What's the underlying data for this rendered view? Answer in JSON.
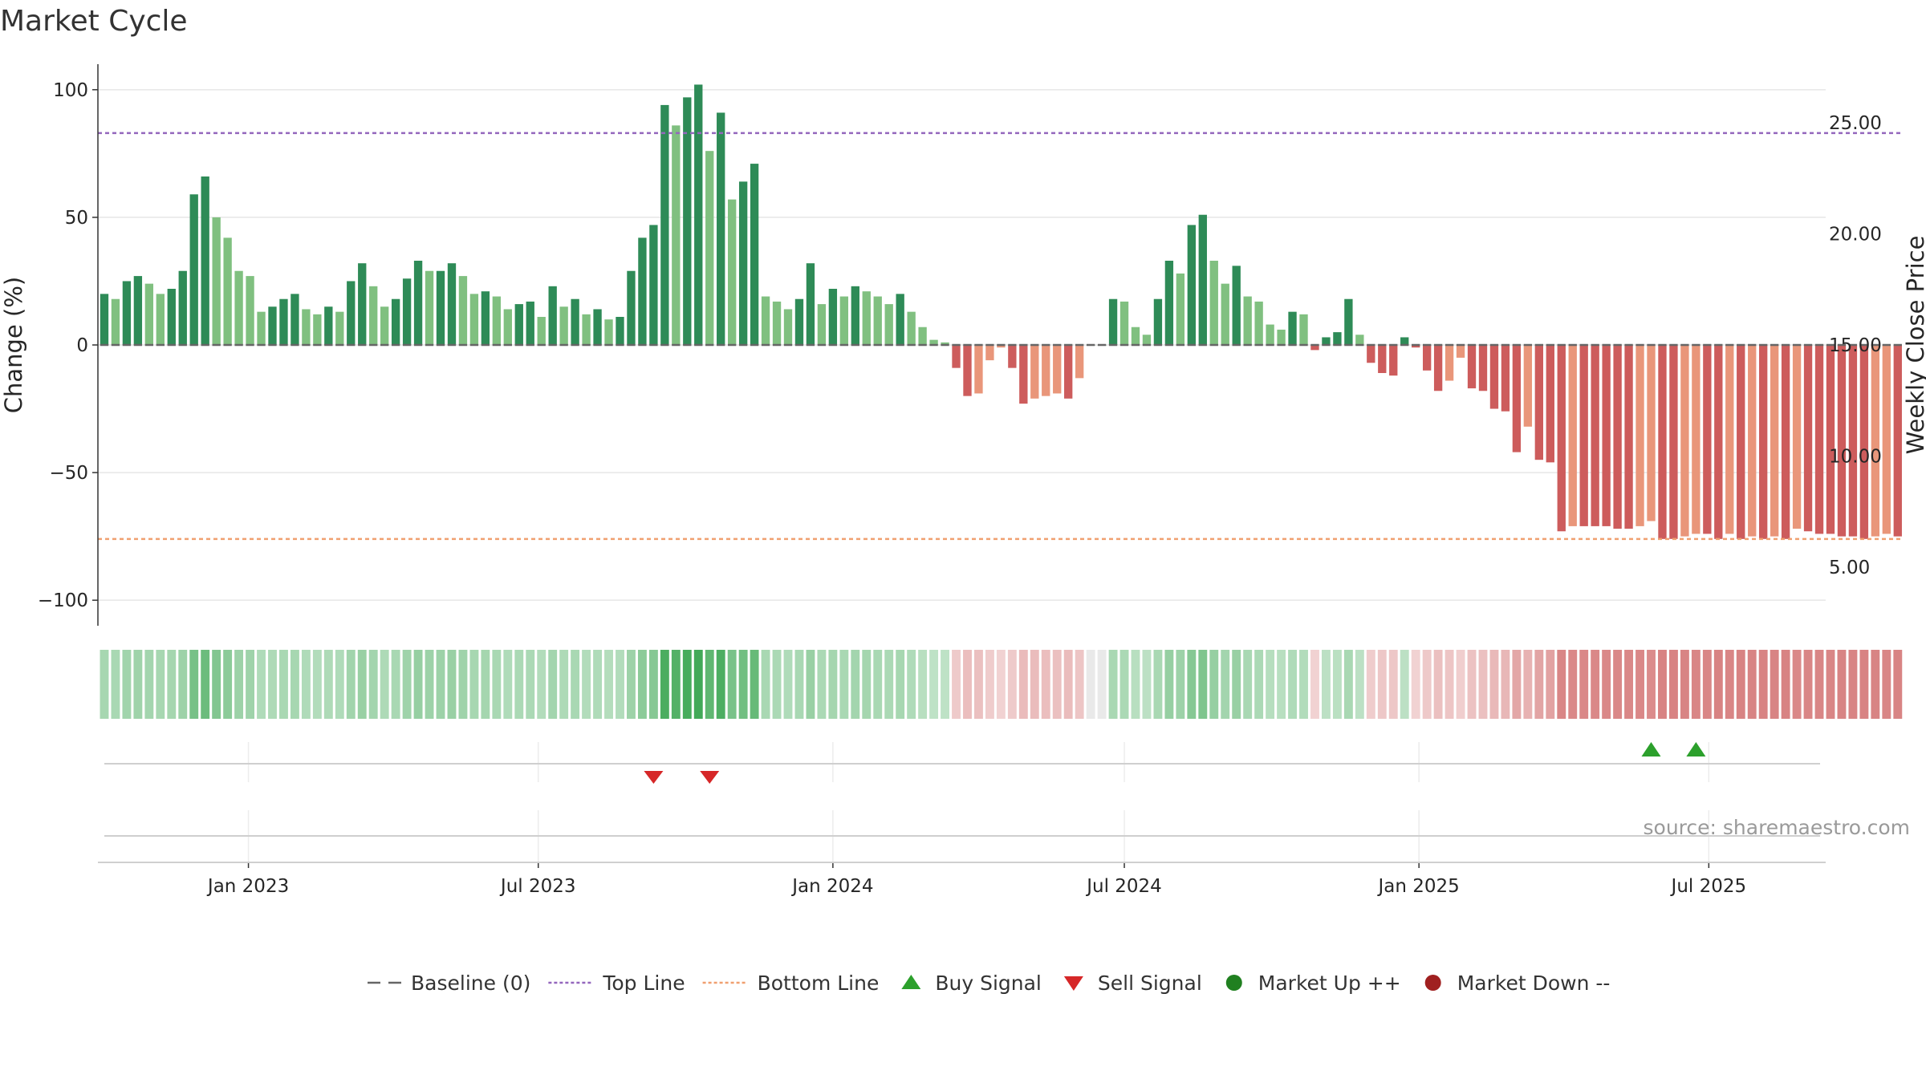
{
  "chart_data": {
    "type": "bar",
    "title": "Market Cycle",
    "ylabel_left": "Change (%)",
    "ylabel_right": "Weekly Close Price",
    "ylim_left": [
      -110,
      110
    ],
    "ylim_right": [
      2.36,
      27.64
    ],
    "yticks_left": [
      100,
      50,
      0,
      -50,
      -100
    ],
    "yticks_left_labels": [
      "100",
      "50",
      "0",
      "−50",
      "−100"
    ],
    "yticks_right": [
      25,
      20,
      15,
      10,
      5
    ],
    "yticks_right_labels": [
      "25.00",
      "20.00",
      "15.00",
      "10.00",
      "5.00"
    ],
    "x_start": "2022-10-03",
    "x_range": [
      "2022-09-29",
      "2025-09-12"
    ],
    "x_ticks": [
      {
        "date": "2023-01-01",
        "label": "Jan 2023"
      },
      {
        "date": "2023-07-01",
        "label": "Jul 2023"
      },
      {
        "date": "2024-01-01",
        "label": "Jan 2024"
      },
      {
        "date": "2024-07-01",
        "label": "Jul 2024"
      },
      {
        "date": "2025-01-01",
        "label": "Jan 2025"
      },
      {
        "date": "2025-07-01",
        "label": "Jul 2025"
      }
    ],
    "top_line": 83,
    "bottom_line": -76,
    "baseline": 0,
    "values": [
      20,
      18,
      25,
      27,
      24,
      20,
      22,
      29,
      59,
      66,
      50,
      42,
      29,
      27,
      13,
      15,
      18,
      20,
      14,
      12,
      15,
      13,
      25,
      32,
      23,
      15,
      18,
      26,
      33,
      29,
      29,
      32,
      27,
      20,
      21,
      19,
      14,
      16,
      17,
      11,
      23,
      15,
      18,
      12,
      14,
      10,
      11,
      29,
      42,
      47,
      94,
      86,
      97,
      102,
      76,
      91,
      57,
      64,
      71,
      19,
      17,
      14,
      18,
      32,
      16,
      22,
      19,
      23,
      21,
      19,
      16,
      20,
      13,
      7,
      2,
      1,
      -9,
      -20,
      -19,
      -6,
      -1,
      -9,
      -23,
      -21,
      -20,
      -19,
      -21,
      -13,
      0,
      0,
      18,
      17,
      7,
      4,
      18,
      33,
      28,
      47,
      51,
      33,
      24,
      31,
      19,
      17,
      8,
      6,
      13,
      12,
      -2,
      3,
      5,
      18,
      4,
      -7,
      -11,
      -12,
      3,
      -1,
      -10,
      -18,
      -14,
      -5,
      -17,
      -18,
      -25,
      -26,
      -42,
      -32,
      -45,
      -46,
      -73,
      -71,
      -71,
      -71,
      -71,
      -72,
      -72,
      -71,
      -69,
      -76,
      -76,
      -75,
      -74,
      -74,
      -76,
      -74,
      -76,
      -75,
      -76,
      -75,
      -76,
      -72,
      -73,
      -74,
      -74,
      -75,
      -75,
      -76,
      -75,
      -74,
      -75
    ],
    "weekly_close": [],
    "series": [
      {
        "name": "Baseline (0)",
        "style": "dashed",
        "color": "#666666"
      },
      {
        "name": "Top Line",
        "style": "dotted",
        "color": "#9467bd"
      },
      {
        "name": "Bottom Line",
        "style": "dotted",
        "color": "#f0a070"
      },
      {
        "name": "Buy Signal",
        "marker": "triangle-up",
        "color": "#2ca02c"
      },
      {
        "name": "Sell Signal",
        "marker": "triangle-down",
        "color": "#d62728"
      },
      {
        "name": "Market Up ++",
        "marker": "circle",
        "color": "#208020"
      },
      {
        "name": "Market Down --",
        "marker": "circle",
        "color": "#a02020"
      }
    ],
    "buy_signals": [
      "2025-05-26",
      "2025-06-23"
    ],
    "sell_signals": [
      "2023-09-11",
      "2023-10-16"
    ],
    "legend_position": "bottom-center",
    "source": "source: sharemaestro.com",
    "colors": {
      "up_strong": "#2e8b57",
      "up_weak": "#80c080",
      "down_strong": "#cd5c5c",
      "down_weak": "#e9967a",
      "top_line": "#9467bd",
      "bottom_line": "#f0a070",
      "baseline": "#666666",
      "buy": "#2ca02c",
      "sell": "#d62728",
      "grid": "#e6e6e6"
    }
  }
}
